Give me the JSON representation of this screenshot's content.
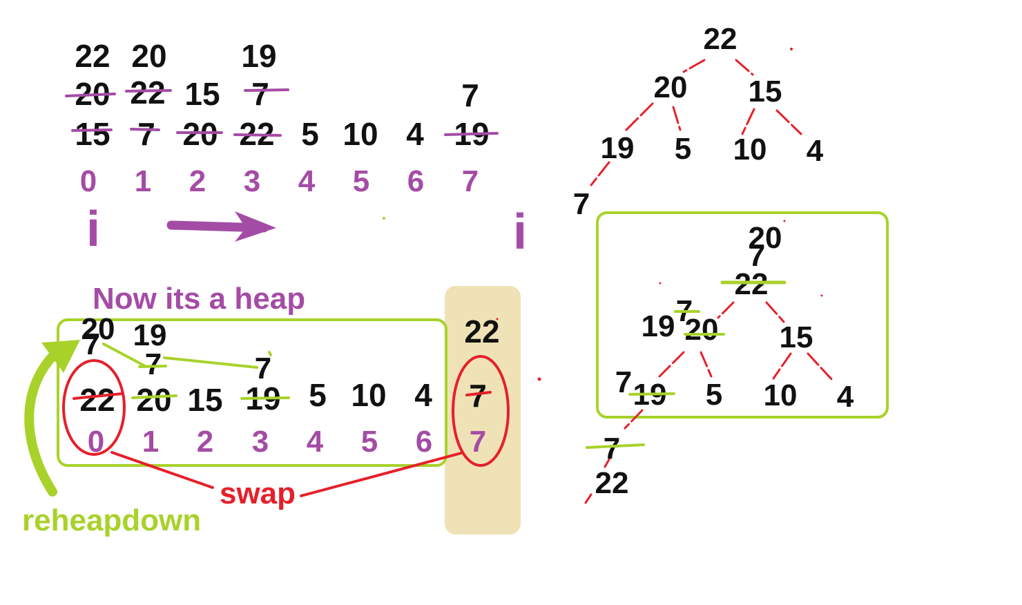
{
  "colors": {
    "strike_purple": "#a44ca5",
    "strike_green": "#a8d22a",
    "strike_red": "#e5202a",
    "box_green": "#a8d22a",
    "sorted_fill": "#efe2b6",
    "edge_red": "#e5202a"
  },
  "top_array": {
    "row_top": [
      "22",
      "20",
      "19",
      "7"
    ],
    "row_mid": [
      "20",
      "22",
      "15",
      "7"
    ],
    "row_base": [
      "15",
      "7",
      "20",
      "22",
      "5",
      "10",
      "4",
      "19"
    ],
    "indices": [
      "0",
      "1",
      "2",
      "3",
      "4",
      "5",
      "6",
      "7"
    ],
    "pointer": "i",
    "arrow_icon": "right-arrow-icon"
  },
  "bottom_array": {
    "title": "Now its a heap",
    "row_top": [
      "20",
      "19"
    ],
    "row_mid": [
      "7",
      "7",
      "7"
    ],
    "row_base": [
      "22",
      "20",
      "15",
      "19",
      "5",
      "10",
      "4"
    ],
    "indices": [
      "0",
      "1",
      "2",
      "3",
      "4",
      "5",
      "6"
    ],
    "sorted_top": "22",
    "sorted_base": "7",
    "sorted_index": "7",
    "swap_label": "swap",
    "reheap_label": "reheapdown"
  },
  "tree_upper": {
    "root": "22",
    "l1": [
      "20",
      "15"
    ],
    "l2": [
      "19",
      "5",
      "10",
      "4"
    ],
    "l3": [
      "7"
    ]
  },
  "tree_lower": {
    "root_top": "20",
    "root_mid": "7",
    "root_old": "22",
    "left_prefix": "19",
    "left_small": "7",
    "left_old": "20",
    "right": "15",
    "ll_prefix": "7",
    "ll_old": "19",
    "leaves": [
      "5",
      "10",
      "4"
    ],
    "removed_old": "7",
    "removed": "22"
  }
}
